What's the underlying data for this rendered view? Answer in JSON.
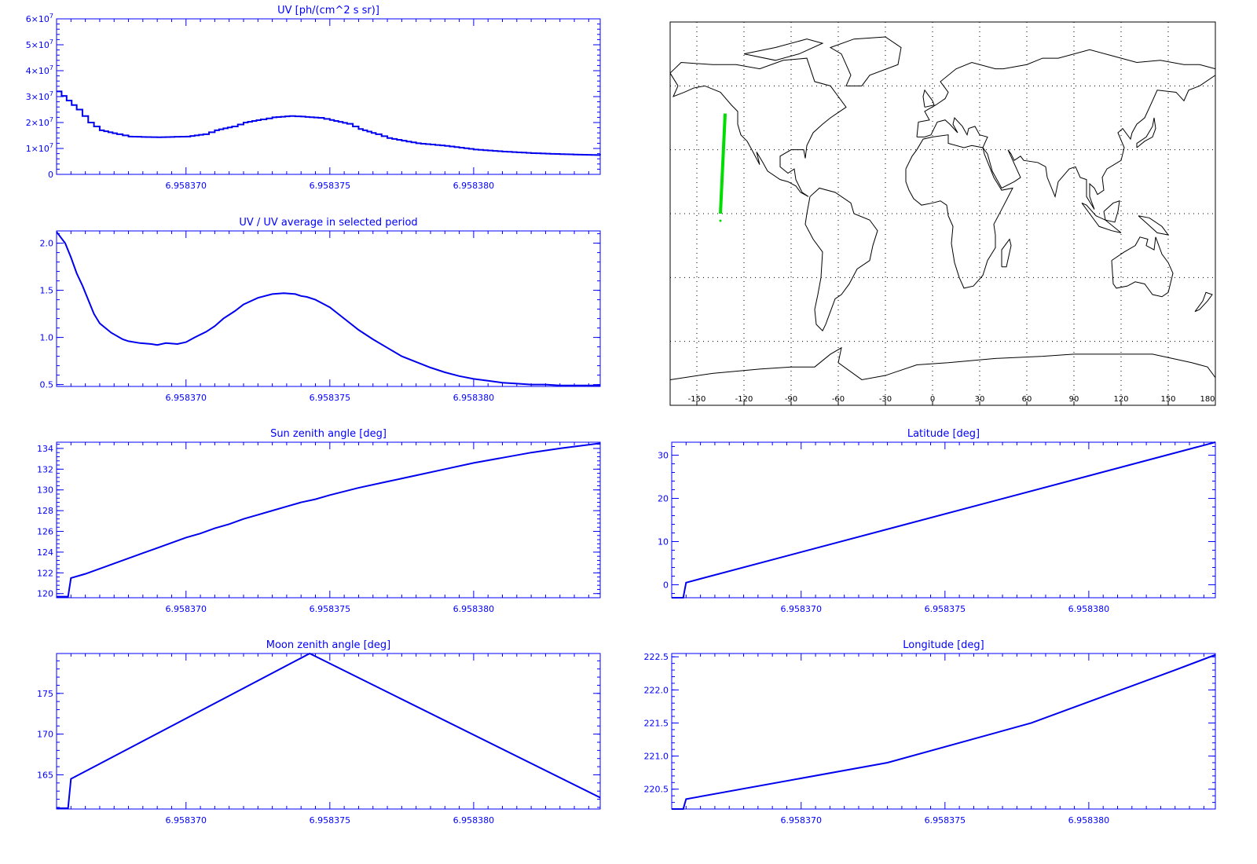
{
  "colors": {
    "axis": "#0000ff",
    "line": "#0000ee",
    "map": "#000000",
    "grid": "#000000",
    "track": "#00dd00"
  },
  "x_tick_labels": [
    "6.958370",
    "6.958375",
    "6.958380"
  ],
  "map": {
    "lon_ticks": [
      "-150",
      "-120",
      "-90",
      "-60",
      "-30",
      "0",
      "30",
      "60",
      "90",
      "120",
      "150",
      "180"
    ],
    "track": {
      "lon_start": -135,
      "lat_start": 0,
      "lon_end": -132,
      "lat_end": 47
    }
  },
  "chart_data": [
    {
      "type": "line",
      "title": "UV [ph/(cm^2 s sr)]",
      "step": true,
      "xlim": [
        6.9583655,
        6.9583844
      ],
      "ylim": [
        0,
        60000000
      ],
      "yticks": [
        0,
        10000000,
        20000000,
        30000000,
        40000000,
        50000000,
        60000000
      ],
      "ytick_labels": [
        {
          "base": "0",
          "exp": ""
        },
        {
          "base": "1×10",
          "exp": "7"
        },
        {
          "base": "2×10",
          "exp": "7"
        },
        {
          "base": "3×10",
          "exp": "7"
        },
        {
          "base": "4×10",
          "exp": "7"
        },
        {
          "base": "5×10",
          "exp": "7"
        },
        {
          "base": "6×10",
          "exp": "7"
        }
      ],
      "series": [
        {
          "x": [
            6.9583655,
            6.9583662,
            6.9583666,
            6.958367,
            6.9583676,
            6.958368,
            6.9583686,
            6.958369,
            6.9583696,
            6.95837,
            6.9583706,
            6.958371,
            6.9583716,
            6.958372,
            6.9583726,
            6.958373,
            6.9583736,
            6.958374,
            6.9583746,
            6.958375,
            6.9583756,
            6.958376,
            6.9583766,
            6.958377,
            6.958378,
            6.958379,
            6.95838,
            6.958381,
            6.958382,
            6.958383,
            6.9583844
          ],
          "y": [
            32000000,
            25000000,
            20000000,
            17000000,
            15500000,
            14600000,
            14400000,
            14300000,
            14500000,
            14600000,
            15500000,
            17000000,
            18500000,
            20000000,
            21200000,
            22000000,
            22500000,
            22300000,
            21800000,
            21000000,
            19500000,
            17500000,
            15500000,
            14000000,
            12000000,
            11000000,
            9600000,
            8800000,
            8200000,
            7800000,
            7400000
          ]
        }
      ]
    },
    {
      "type": "line",
      "title": "UV / UV average in selected period",
      "xlim": [
        6.9583655,
        6.9583844
      ],
      "ylim": [
        0.48,
        2.13
      ],
      "yticks": [
        0.5,
        1.0,
        1.5,
        2.0
      ],
      "ytick_labels": [
        "0.5",
        "1.0",
        "1.5",
        "2.0"
      ],
      "series": [
        {
          "x": [
            6.9583655,
            6.9583658,
            6.958366,
            6.9583662,
            6.9583664,
            6.9583666,
            6.9583668,
            6.958367,
            6.9583674,
            6.9583678,
            6.958368,
            6.9583684,
            6.9583688,
            6.958369,
            6.9583693,
            6.9583697,
            6.95837,
            6.9583703,
            6.9583707,
            6.958371,
            6.9583713,
            6.9583717,
            6.958372,
            6.9583725,
            6.958373,
            6.9583734,
            6.9583738,
            6.958374,
            6.9583742,
            6.9583745,
            6.958375,
            6.9583755,
            6.958376,
            6.9583765,
            6.958377,
            6.9583775,
            6.958378,
            6.9583785,
            6.958379,
            6.9583795,
            6.95838,
            6.9583805,
            6.958381,
            6.9583815,
            6.958382,
            6.9583825,
            6.958383,
            6.9583835,
            6.9583844
          ],
          "y": [
            2.12,
            2.0,
            1.85,
            1.68,
            1.55,
            1.4,
            1.25,
            1.15,
            1.05,
            0.98,
            0.96,
            0.94,
            0.93,
            0.92,
            0.94,
            0.93,
            0.95,
            1.0,
            1.06,
            1.12,
            1.2,
            1.28,
            1.35,
            1.42,
            1.46,
            1.47,
            1.46,
            1.44,
            1.43,
            1.4,
            1.32,
            1.2,
            1.08,
            0.98,
            0.89,
            0.8,
            0.74,
            0.68,
            0.63,
            0.59,
            0.56,
            0.54,
            0.52,
            0.51,
            0.5,
            0.5,
            0.49,
            0.49,
            0.49
          ]
        }
      ]
    },
    {
      "type": "line",
      "title": "Sun zenith angle [deg]",
      "xlim": [
        6.9583655,
        6.9583844
      ],
      "ylim": [
        119.6,
        134.6
      ],
      "yticks": [
        120,
        122,
        124,
        126,
        128,
        130,
        132,
        134
      ],
      "ytick_labels": [
        "120",
        "122",
        "124",
        "126",
        "128",
        "130",
        "132",
        "134"
      ],
      "series": [
        {
          "x": [
            6.9583655,
            6.9583659,
            6.958366,
            6.9583665,
            6.958367,
            6.9583675,
            6.958368,
            6.9583685,
            6.958369,
            6.9583695,
            6.95837,
            6.9583705,
            6.958371,
            6.9583715,
            6.958372,
            6.9583725,
            6.958373,
            6.9583735,
            6.958374,
            6.9583745,
            6.958375,
            6.958376,
            6.958377,
            6.958378,
            6.958379,
            6.95838,
            6.958381,
            6.958382,
            6.958383,
            6.9583844
          ],
          "y": [
            119.7,
            119.7,
            121.5,
            121.9,
            122.4,
            122.9,
            123.4,
            123.9,
            124.4,
            124.9,
            125.4,
            125.8,
            126.3,
            126.7,
            127.2,
            127.6,
            128.0,
            128.4,
            128.8,
            129.1,
            129.5,
            130.2,
            130.8,
            131.4,
            132.0,
            132.6,
            133.1,
            133.6,
            134.0,
            134.5
          ]
        }
      ]
    },
    {
      "type": "line",
      "title": "Latitude [deg]",
      "xlim": [
        6.9583655,
        6.9583844
      ],
      "ylim": [
        -3,
        33
      ],
      "yticks": [
        0,
        10,
        20,
        30
      ],
      "ytick_labels": [
        "0",
        "10",
        "20",
        "30"
      ],
      "series": [
        {
          "x": [
            6.9583655,
            6.9583659,
            6.958366,
            6.9583844
          ],
          "y": [
            -3,
            -3,
            0.5,
            33
          ]
        }
      ]
    },
    {
      "type": "line",
      "title": "Moon zenith angle [deg]",
      "xlim": [
        6.9583655,
        6.9583844
      ],
      "ylim": [
        160.8,
        179.9
      ],
      "yticks": [
        165,
        170,
        175
      ],
      "ytick_labels": [
        "165",
        "170",
        "175"
      ],
      "series": [
        {
          "x": [
            6.9583655,
            6.9583659,
            6.958366,
            6.9583743,
            6.9583844
          ],
          "y": [
            160.9,
            160.9,
            164.5,
            179.9,
            162.2
          ]
        }
      ]
    },
    {
      "type": "line",
      "title": "Longitude [deg]",
      "xlim": [
        6.9583655,
        6.9583844
      ],
      "ylim": [
        220.2,
        222.55
      ],
      "yticks": [
        220.5,
        221.0,
        221.5,
        222.0,
        222.5
      ],
      "ytick_labels": [
        "220.5",
        "221.0",
        "221.5",
        "222.0",
        "222.5"
      ],
      "series": [
        {
          "x": [
            6.9583655,
            6.9583659,
            6.958366,
            6.958373,
            6.958378,
            6.958383,
            6.9583844
          ],
          "y": [
            220.2,
            220.2,
            220.35,
            220.9,
            221.5,
            222.3,
            222.53
          ]
        }
      ]
    }
  ]
}
